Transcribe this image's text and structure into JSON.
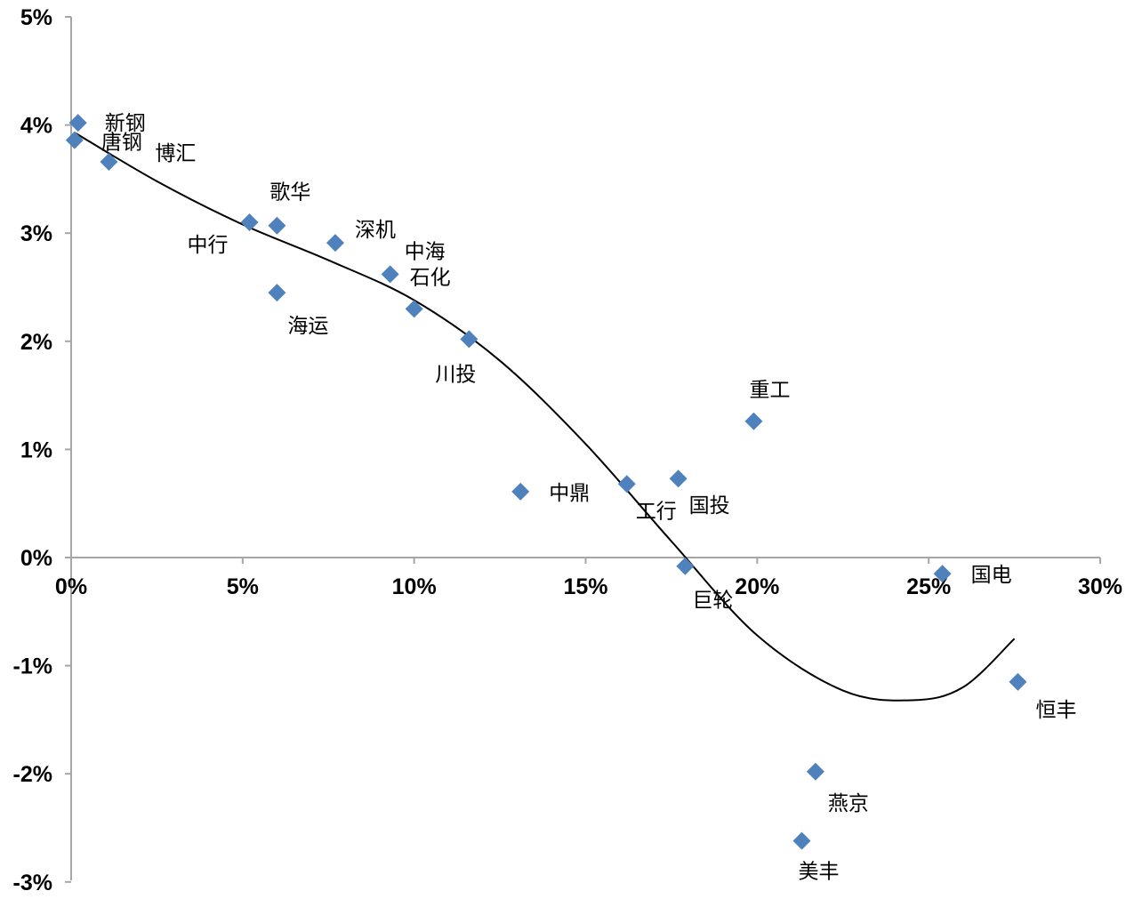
{
  "chart_data": {
    "type": "scatter",
    "title": "",
    "xlabel": "",
    "ylabel": "",
    "xlim": [
      0,
      30
    ],
    "ylim": [
      -3,
      5
    ],
    "x_ticks": [
      "0%",
      "5%",
      "10%",
      "15%",
      "20%",
      "25%",
      "30%"
    ],
    "y_ticks": [
      "5%",
      "4%",
      "3%",
      "2%",
      "1%",
      "0%",
      "-1%",
      "-2%",
      "-3%"
    ],
    "marker_color": "#4f81bd",
    "trendline": {
      "type": "polynomial",
      "color": "#000000",
      "points": [
        [
          0.1,
          3.93
        ],
        [
          2.5,
          3.48
        ],
        [
          5,
          3.08
        ],
        [
          7.5,
          2.75
        ],
        [
          10,
          2.38
        ],
        [
          12.5,
          1.82
        ],
        [
          15,
          1.05
        ],
        [
          17.5,
          0.15
        ],
        [
          20,
          -0.72
        ],
        [
          22.5,
          -1.23
        ],
        [
          24.5,
          -1.32
        ],
        [
          26,
          -1.2
        ],
        [
          27.5,
          -0.75
        ]
      ]
    },
    "points": [
      {
        "label": "新钢",
        "x": 0.2,
        "y": 4.02
      },
      {
        "label": "唐钢",
        "x": 0.1,
        "y": 3.86
      },
      {
        "label": "博汇",
        "x": 1.1,
        "y": 3.66
      },
      {
        "label": "中行",
        "x": 5.2,
        "y": 3.1
      },
      {
        "label": "歌华",
        "x": 6.0,
        "y": 3.07
      },
      {
        "label": "海运",
        "x": 6.0,
        "y": 2.45
      },
      {
        "label": "深机",
        "x": 7.7,
        "y": 2.91
      },
      {
        "label": "中海",
        "x": 9.3,
        "y": 2.62
      },
      {
        "label": "石化",
        "x": 10.0,
        "y": 2.3
      },
      {
        "label": "川投",
        "x": 11.6,
        "y": 2.02
      },
      {
        "label": "中鼎",
        "x": 13.1,
        "y": 0.61
      },
      {
        "label": "工行",
        "x": 16.2,
        "y": 0.68
      },
      {
        "label": "国投",
        "x": 17.7,
        "y": 0.73
      },
      {
        "label": "巨轮",
        "x": 17.9,
        "y": -0.08
      },
      {
        "label": "重工",
        "x": 19.9,
        "y": 1.26
      },
      {
        "label": "国电",
        "x": 25.4,
        "y": -0.15
      },
      {
        "label": "恒丰",
        "x": 27.6,
        "y": -1.15
      },
      {
        "label": "燕京",
        "x": 21.7,
        "y": -1.98
      },
      {
        "label": "美丰",
        "x": 21.3,
        "y": -2.62
      }
    ]
  }
}
